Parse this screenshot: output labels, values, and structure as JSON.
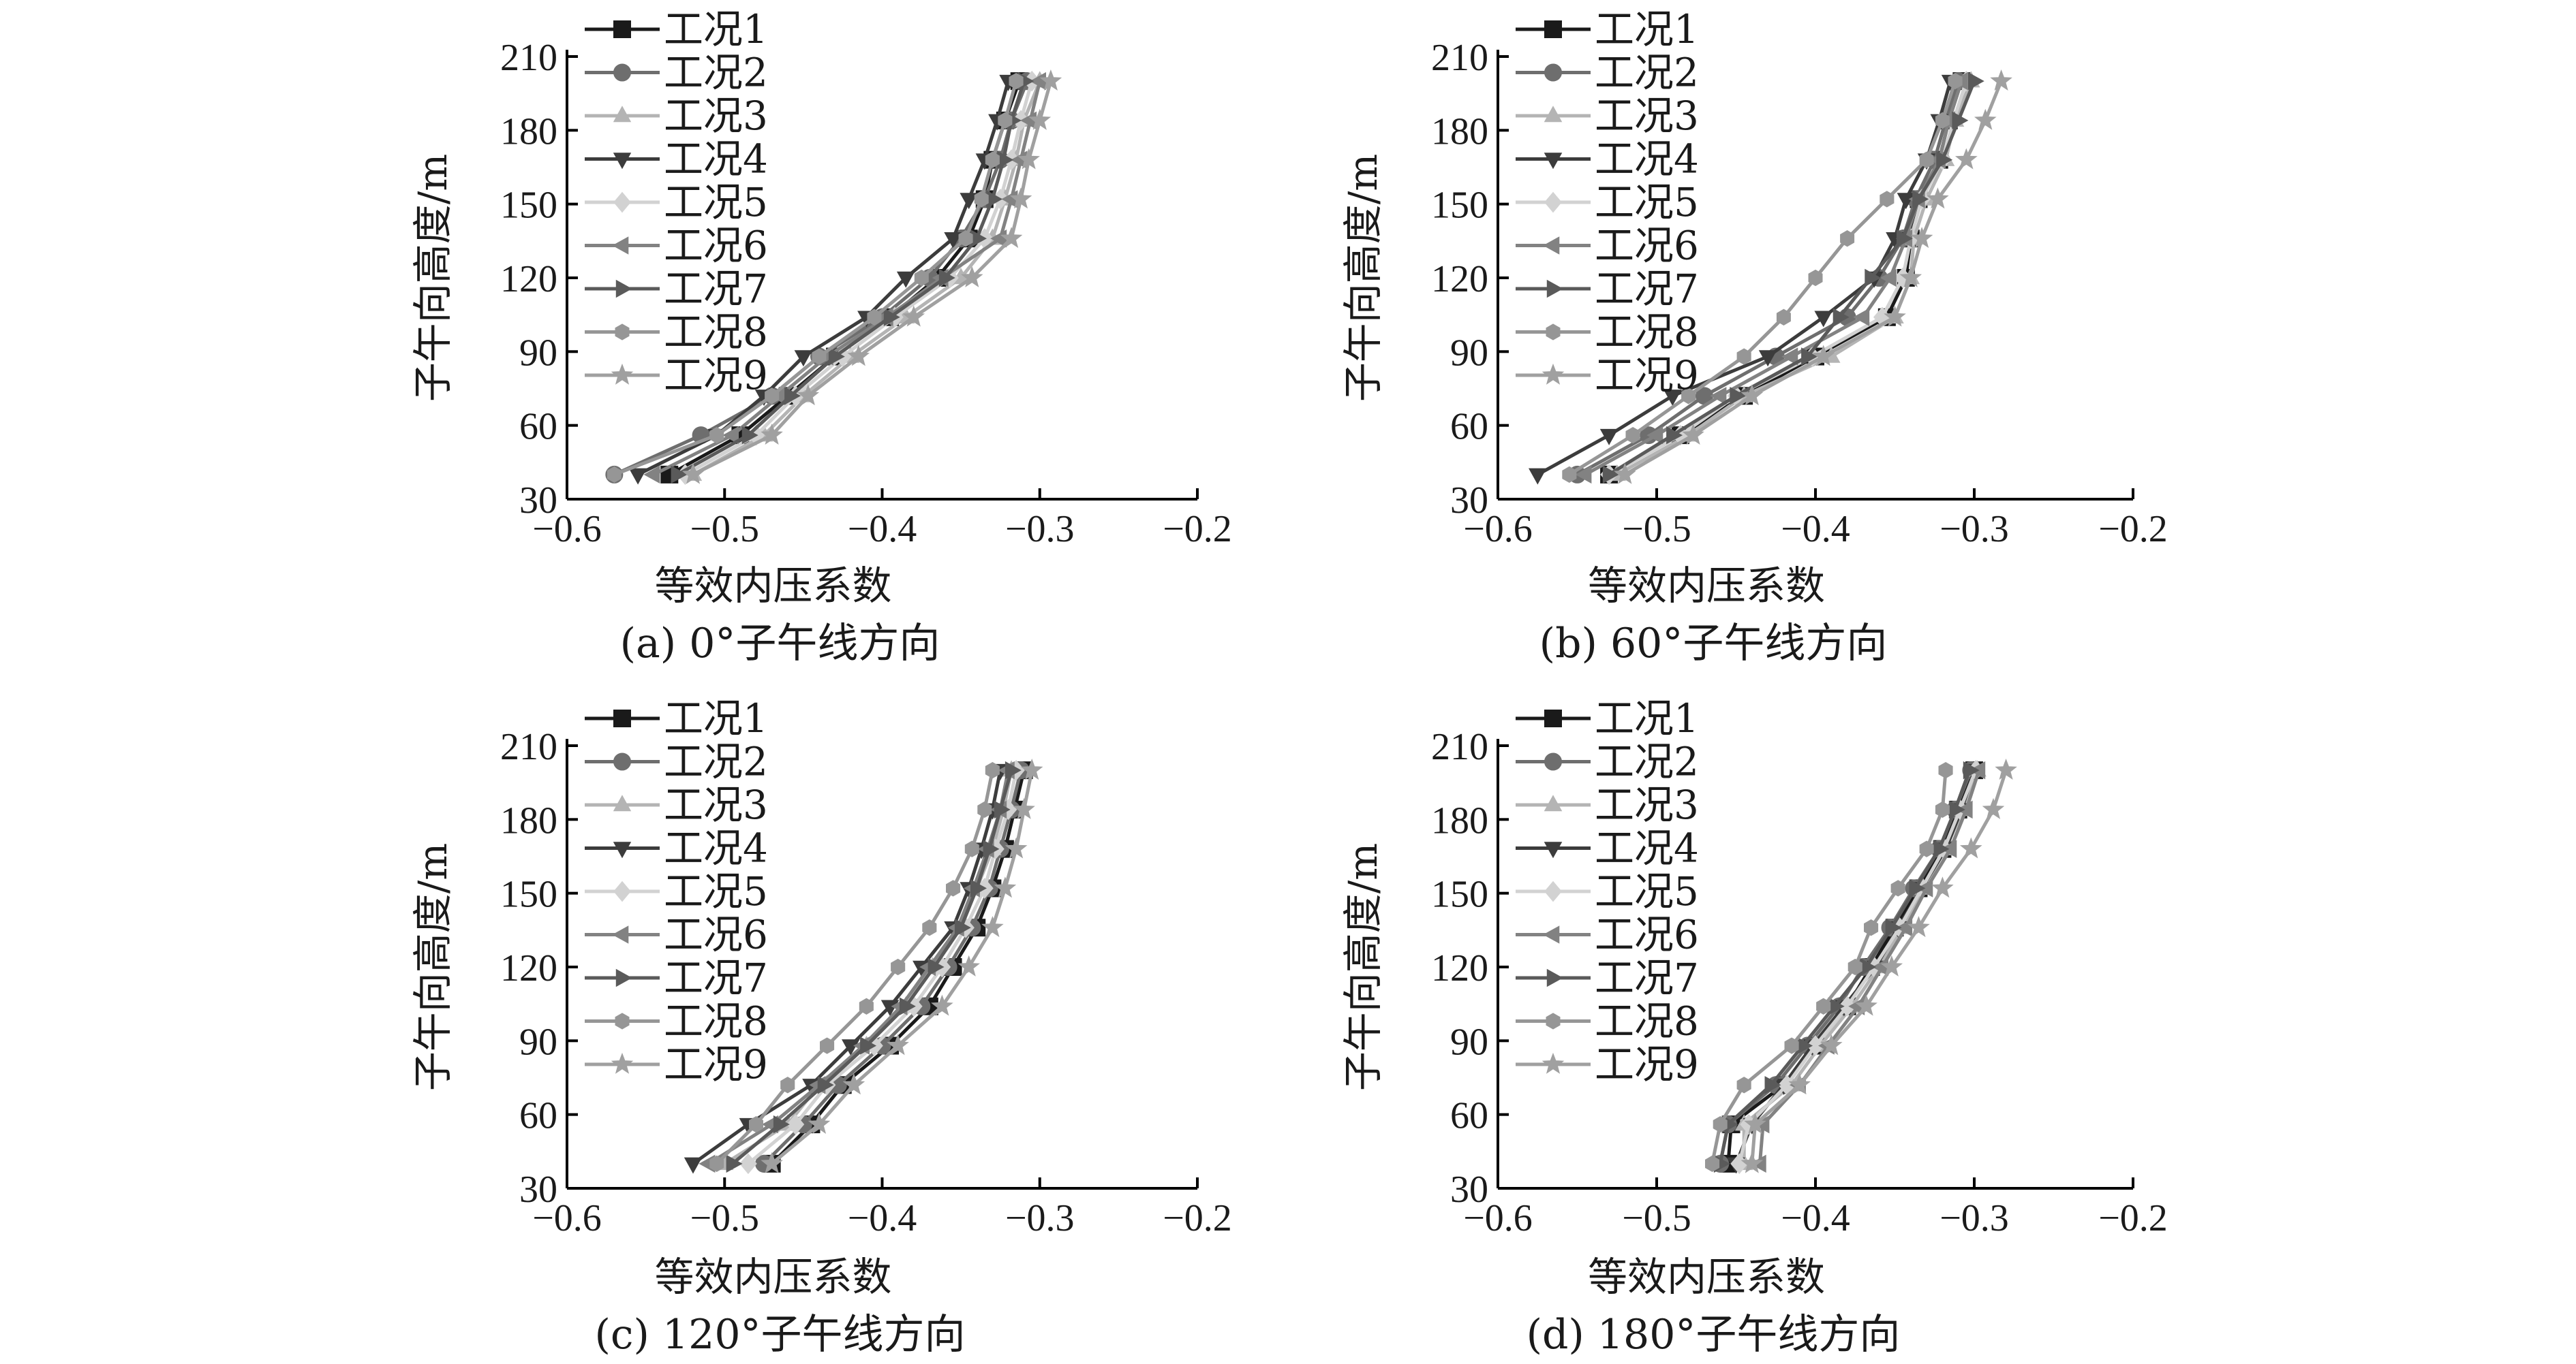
{
  "figure": {
    "axis_color": "#000000",
    "series_style": [
      {
        "color": "#1a1a1a",
        "marker": "square"
      },
      {
        "color": "#6e6e6e",
        "marker": "circle"
      },
      {
        "color": "#b4b4b4",
        "marker": "triangle-up"
      },
      {
        "color": "#3c3c3c",
        "marker": "triangle-down"
      },
      {
        "color": "#d2d2d2",
        "marker": "diamond"
      },
      {
        "color": "#828282",
        "marker": "triangle-left"
      },
      {
        "color": "#5a5a5a",
        "marker": "triangle-right"
      },
      {
        "color": "#969696",
        "marker": "hexagon"
      },
      {
        "color": "#a0a0a0",
        "marker": "star"
      }
    ]
  },
  "chart_data": [
    {
      "type": "line",
      "caption": "(a) 0°子午线方向",
      "xlabel": "等效内压系数",
      "ylabel": "子午向高度/m",
      "xlim": [
        -0.6,
        -0.2
      ],
      "ylim": [
        30,
        210
      ],
      "xticks": [
        "−0.6",
        "−0.5",
        "−0.4",
        "−0.3",
        "−0.2"
      ],
      "yticks": [
        "30",
        "60",
        "90",
        "120",
        "150",
        "180",
        "210"
      ],
      "legend_position": "top-left",
      "y": [
        40,
        56,
        72,
        88,
        104,
        120,
        136,
        152,
        168,
        184,
        200
      ],
      "series": [
        {
          "name": "工况1",
          "values": [
            -0.535,
            -0.49,
            -0.46,
            -0.43,
            -0.395,
            -0.365,
            -0.345,
            -0.335,
            -0.33,
            -0.322,
            -0.313
          ]
        },
        {
          "name": "工况2",
          "values": [
            -0.57,
            -0.515,
            -0.47,
            -0.44,
            -0.4,
            -0.37,
            -0.35,
            -0.335,
            -0.325,
            -0.318,
            -0.308
          ]
        },
        {
          "name": "工况3",
          "values": [
            -0.52,
            -0.475,
            -0.45,
            -0.42,
            -0.385,
            -0.35,
            -0.33,
            -0.322,
            -0.315,
            -0.31,
            -0.3
          ]
        },
        {
          "name": "工况4",
          "values": [
            -0.555,
            -0.505,
            -0.475,
            -0.45,
            -0.41,
            -0.385,
            -0.355,
            -0.345,
            -0.335,
            -0.327,
            -0.32
          ]
        },
        {
          "name": "工况5",
          "values": [
            -0.525,
            -0.48,
            -0.455,
            -0.425,
            -0.392,
            -0.357,
            -0.335,
            -0.325,
            -0.318,
            -0.312,
            -0.305
          ]
        },
        {
          "name": "工况6",
          "values": [
            -0.545,
            -0.495,
            -0.465,
            -0.435,
            -0.397,
            -0.362,
            -0.325,
            -0.318,
            -0.312,
            -0.306,
            -0.3
          ]
        },
        {
          "name": "工况7",
          "values": [
            -0.53,
            -0.485,
            -0.458,
            -0.43,
            -0.395,
            -0.36,
            -0.34,
            -0.33,
            -0.323,
            -0.318,
            -0.31
          ]
        },
        {
          "name": "工况8",
          "values": [
            -0.57,
            -0.505,
            -0.47,
            -0.44,
            -0.405,
            -0.375,
            -0.347,
            -0.337,
            -0.33,
            -0.322,
            -0.315
          ]
        },
        {
          "name": "工况9",
          "values": [
            -0.52,
            -0.47,
            -0.447,
            -0.415,
            -0.38,
            -0.343,
            -0.318,
            -0.312,
            -0.307,
            -0.3,
            -0.293
          ]
        }
      ]
    },
    {
      "type": "line",
      "caption": "(b) 60°子午线方向",
      "xlabel": "等效内压系数",
      "ylabel": "子午向高度/m",
      "xlim": [
        -0.6,
        -0.2
      ],
      "ylim": [
        30,
        210
      ],
      "xticks": [
        "−0.6",
        "−0.5",
        "−0.4",
        "−0.3",
        "−0.2"
      ],
      "yticks": [
        "30",
        "60",
        "90",
        "120",
        "150",
        "180",
        "210"
      ],
      "legend_position": "top-left",
      "y": [
        40,
        56,
        72,
        88,
        104,
        120,
        136,
        152,
        168,
        184,
        200
      ],
      "series": [
        {
          "name": "工况1",
          "values": [
            -0.53,
            -0.485,
            -0.445,
            -0.4,
            -0.355,
            -0.343,
            -0.34,
            -0.335,
            -0.322,
            -0.316,
            -0.308
          ]
        },
        {
          "name": "工况2",
          "values": [
            -0.55,
            -0.505,
            -0.47,
            -0.425,
            -0.38,
            -0.36,
            -0.345,
            -0.337,
            -0.325,
            -0.318,
            -0.31
          ]
        },
        {
          "name": "工况3",
          "values": [
            -0.525,
            -0.48,
            -0.445,
            -0.39,
            -0.35,
            -0.34,
            -0.338,
            -0.33,
            -0.318,
            -0.312,
            -0.302
          ]
        },
        {
          "name": "工况4",
          "values": [
            -0.575,
            -0.53,
            -0.49,
            -0.43,
            -0.395,
            -0.363,
            -0.35,
            -0.343,
            -0.33,
            -0.322,
            -0.315
          ]
        },
        {
          "name": "工况5",
          "values": [
            -0.53,
            -0.485,
            -0.45,
            -0.402,
            -0.358,
            -0.345,
            -0.34,
            -0.333,
            -0.32,
            -0.313,
            -0.305
          ]
        },
        {
          "name": "工况6",
          "values": [
            -0.545,
            -0.5,
            -0.46,
            -0.415,
            -0.37,
            -0.353,
            -0.343,
            -0.335,
            -0.322,
            -0.316,
            -0.308
          ]
        },
        {
          "name": "工况7",
          "values": [
            -0.53,
            -0.49,
            -0.45,
            -0.405,
            -0.385,
            -0.365,
            -0.345,
            -0.335,
            -0.32,
            -0.31,
            -0.3
          ]
        },
        {
          "name": "工况8",
          "values": [
            -0.555,
            -0.515,
            -0.48,
            -0.445,
            -0.42,
            -0.4,
            -0.38,
            -0.355,
            -0.33,
            -0.32,
            -0.312
          ]
        },
        {
          "name": "工况9",
          "values": [
            -0.52,
            -0.477,
            -0.44,
            -0.395,
            -0.35,
            -0.34,
            -0.333,
            -0.323,
            -0.305,
            -0.293,
            -0.283
          ]
        }
      ]
    },
    {
      "type": "line",
      "caption": "(c) 120°子午线方向",
      "xlabel": "等效内压系数",
      "ylabel": "子午向高度/m",
      "xlim": [
        -0.6,
        -0.2
      ],
      "ylim": [
        30,
        210
      ],
      "xticks": [
        "−0.6",
        "−0.5",
        "−0.4",
        "−0.3",
        "−0.2"
      ],
      "yticks": [
        "30",
        "60",
        "90",
        "120",
        "150",
        "180",
        "210"
      ],
      "legend_position": "top-left",
      "y": [
        40,
        56,
        72,
        88,
        104,
        120,
        136,
        152,
        168,
        184,
        200
      ],
      "series": [
        {
          "name": "工况1",
          "values": [
            -0.47,
            -0.445,
            -0.425,
            -0.395,
            -0.37,
            -0.355,
            -0.34,
            -0.33,
            -0.322,
            -0.316,
            -0.31
          ]
        },
        {
          "name": "工况2",
          "values": [
            -0.475,
            -0.45,
            -0.428,
            -0.4,
            -0.375,
            -0.358,
            -0.343,
            -0.332,
            -0.325,
            -0.318,
            -0.312
          ]
        },
        {
          "name": "工况3",
          "values": [
            -0.5,
            -0.46,
            -0.44,
            -0.41,
            -0.385,
            -0.368,
            -0.35,
            -0.34,
            -0.33,
            -0.323,
            -0.318
          ]
        },
        {
          "name": "工况4",
          "values": [
            -0.52,
            -0.485,
            -0.445,
            -0.42,
            -0.395,
            -0.375,
            -0.355,
            -0.345,
            -0.337,
            -0.33,
            -0.325
          ]
        },
        {
          "name": "工况5",
          "values": [
            -0.485,
            -0.455,
            -0.435,
            -0.405,
            -0.38,
            -0.362,
            -0.347,
            -0.335,
            -0.328,
            -0.32,
            -0.315
          ]
        },
        {
          "name": "工况6",
          "values": [
            -0.51,
            -0.47,
            -0.44,
            -0.412,
            -0.388,
            -0.37,
            -0.352,
            -0.342,
            -0.333,
            -0.325,
            -0.32
          ]
        },
        {
          "name": "工况7",
          "values": [
            -0.495,
            -0.465,
            -0.437,
            -0.41,
            -0.385,
            -0.367,
            -0.35,
            -0.34,
            -0.332,
            -0.325,
            -0.318
          ]
        },
        {
          "name": "工况8",
          "values": [
            -0.505,
            -0.48,
            -0.46,
            -0.435,
            -0.41,
            -0.39,
            -0.37,
            -0.355,
            -0.343,
            -0.335,
            -0.33
          ]
        },
        {
          "name": "工况9",
          "values": [
            -0.47,
            -0.44,
            -0.418,
            -0.39,
            -0.362,
            -0.345,
            -0.33,
            -0.322,
            -0.315,
            -0.31,
            -0.305
          ]
        }
      ]
    },
    {
      "type": "line",
      "caption": "(d) 180°子午线方向",
      "xlabel": "等效内压系数",
      "ylabel": "子午向高度/m",
      "xlim": [
        -0.6,
        -0.2
      ],
      "ylim": [
        30,
        210
      ],
      "xticks": [
        "−0.6",
        "−0.5",
        "−0.4",
        "−0.3",
        "−0.2"
      ],
      "yticks": [
        "30",
        "60",
        "90",
        "120",
        "150",
        "180",
        "210"
      ],
      "legend_position": "top-left",
      "y": [
        40,
        56,
        72,
        88,
        104,
        120,
        136,
        152,
        168,
        184,
        200
      ],
      "series": [
        {
          "name": "工况1",
          "values": [
            -0.455,
            -0.453,
            -0.42,
            -0.4,
            -0.38,
            -0.365,
            -0.35,
            -0.335,
            -0.32,
            -0.31,
            -0.3
          ]
        },
        {
          "name": "工况2",
          "values": [
            -0.46,
            -0.455,
            -0.425,
            -0.405,
            -0.385,
            -0.37,
            -0.353,
            -0.338,
            -0.322,
            -0.312,
            -0.302
          ]
        },
        {
          "name": "工况3",
          "values": [
            -0.445,
            -0.445,
            -0.415,
            -0.397,
            -0.377,
            -0.36,
            -0.345,
            -0.332,
            -0.318,
            -0.307,
            -0.298
          ]
        },
        {
          "name": "工况4",
          "values": [
            -0.45,
            -0.44,
            -0.42,
            -0.402,
            -0.382,
            -0.362,
            -0.348,
            -0.333,
            -0.318,
            -0.308,
            -0.3
          ]
        },
        {
          "name": "工况5",
          "values": [
            -0.448,
            -0.442,
            -0.418,
            -0.4,
            -0.38,
            -0.363,
            -0.347,
            -0.333,
            -0.319,
            -0.309,
            -0.299
          ]
        },
        {
          "name": "工况6",
          "values": [
            -0.435,
            -0.433,
            -0.41,
            -0.392,
            -0.373,
            -0.358,
            -0.343,
            -0.33,
            -0.315,
            -0.305,
            -0.297
          ]
        },
        {
          "name": "工况7",
          "values": [
            -0.46,
            -0.455,
            -0.428,
            -0.408,
            -0.388,
            -0.368,
            -0.352,
            -0.337,
            -0.322,
            -0.312,
            -0.303
          ]
        },
        {
          "name": "工况8",
          "values": [
            -0.465,
            -0.46,
            -0.445,
            -0.415,
            -0.395,
            -0.375,
            -0.365,
            -0.348,
            -0.33,
            -0.32,
            -0.318
          ]
        },
        {
          "name": "工况9",
          "values": [
            -0.44,
            -0.438,
            -0.41,
            -0.39,
            -0.368,
            -0.352,
            -0.335,
            -0.32,
            -0.302,
            -0.288,
            -0.28
          ]
        }
      ]
    }
  ]
}
